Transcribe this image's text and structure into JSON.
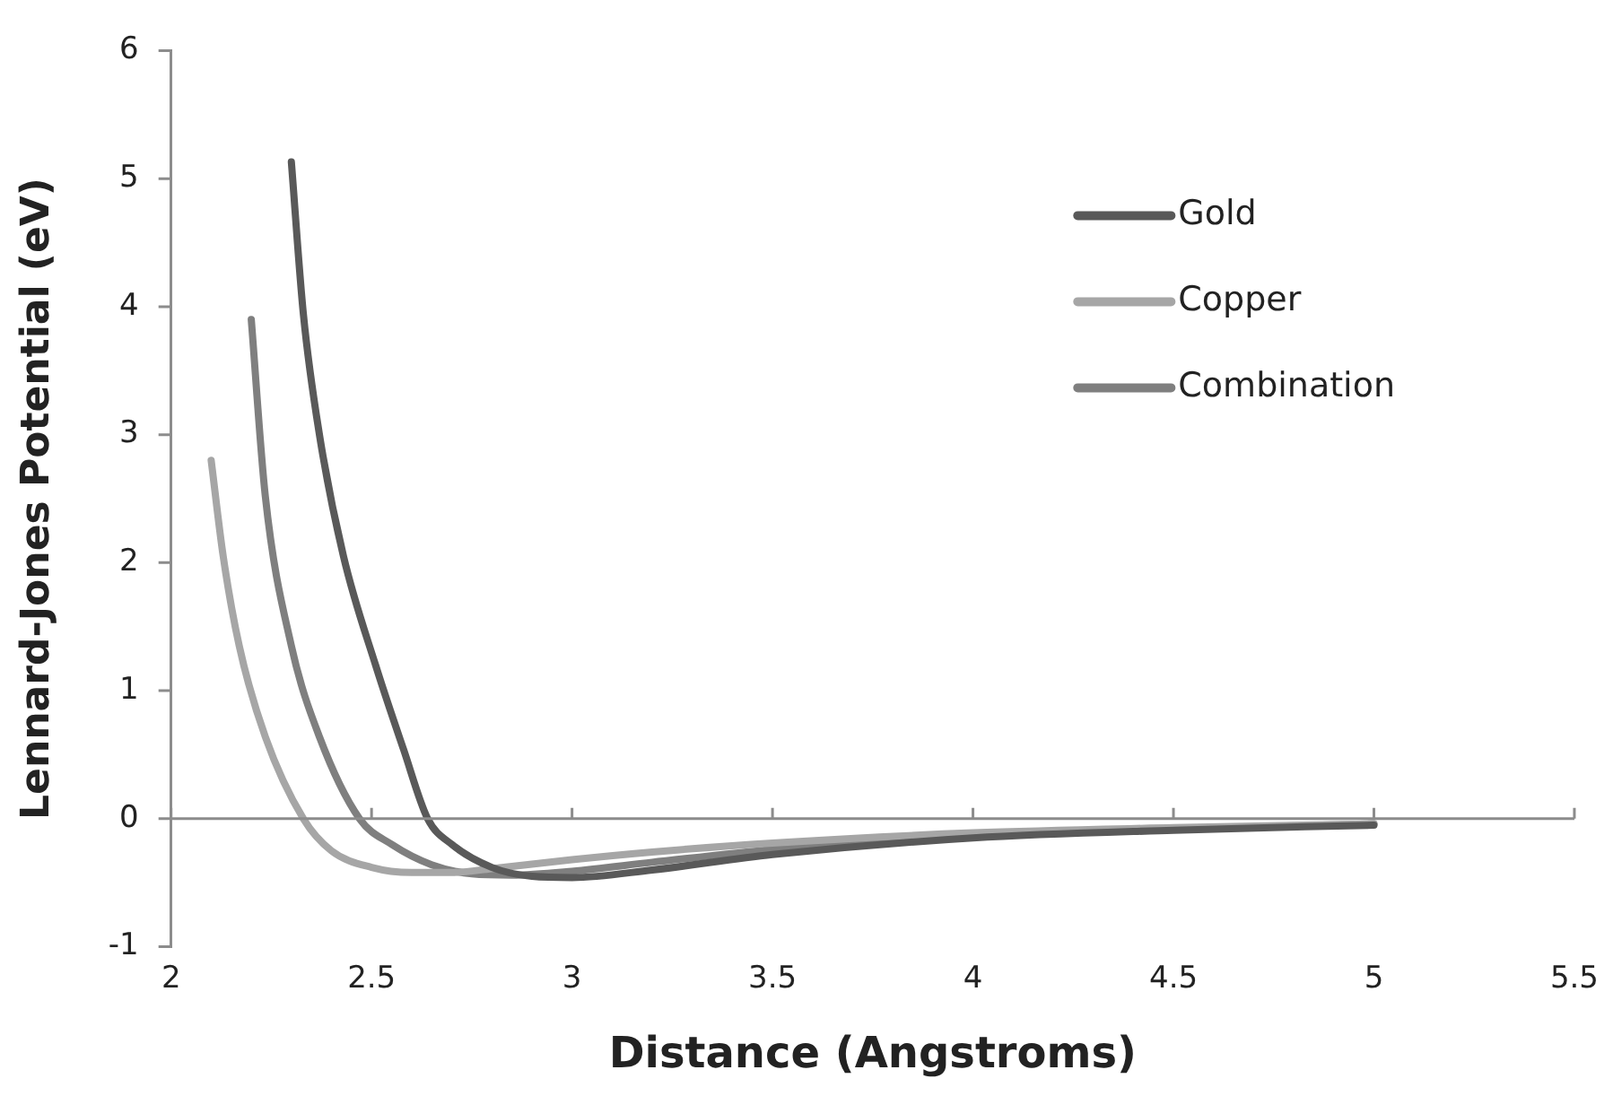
{
  "chart_data": {
    "type": "line",
    "xlabel": "Distance (Angstroms)",
    "ylabel": "Lennard-Jones Potential (eV)",
    "xlim": [
      2,
      5.5
    ],
    "xticks": [
      2,
      2.5,
      3,
      3.5,
      4,
      4.5,
      5,
      5.5
    ],
    "ylim": [
      -1,
      6
    ],
    "yticks": [
      -1,
      0,
      1,
      2,
      3,
      4,
      5,
      6
    ],
    "grid": false,
    "ref_lines": [
      {
        "axis": "y",
        "value": 0,
        "color": "#8c8c8c"
      }
    ],
    "legend": "top right",
    "marker": "none",
    "line_style": "solid",
    "series": [
      {
        "name": "Gold",
        "color": "#595959",
        "x": [
          2.3,
          2.33,
          2.37,
          2.43,
          2.51,
          2.58,
          2.64,
          2.7,
          2.8,
          2.9,
          3.0,
          3.2,
          3.5,
          4,
          4.5,
          5
        ],
        "values": [
          5.13,
          3.94,
          3.0,
          2.05,
          1.2,
          0.54,
          0,
          -0.2,
          -0.38,
          -0.45,
          -0.46,
          -0.4,
          -0.28,
          -0.15,
          -0.09,
          -0.05
        ]
      },
      {
        "name": "Copper",
        "color": "#a6a6a6",
        "x": [
          2.1,
          2.13,
          2.17,
          2.235,
          2.33,
          2.4,
          2.5,
          2.6,
          2.7,
          2.8,
          3.0,
          3.2,
          3.5,
          4,
          4.5,
          5
        ],
        "values": [
          2.8,
          2.05,
          1.35,
          0.64,
          0,
          -0.25,
          -0.38,
          -0.42,
          -0.42,
          -0.39,
          -0.32,
          -0.26,
          -0.19,
          -0.11,
          -0.07,
          -0.04
        ]
      },
      {
        "name": "Combination",
        "color": "#7f7f7f",
        "x": [
          2.2,
          2.235,
          2.3,
          2.37,
          2.47,
          2.55,
          2.65,
          2.75,
          2.85,
          3.0,
          3.2,
          3.5,
          4,
          4.5,
          5
        ],
        "values": [
          3.9,
          2.52,
          1.35,
          0.64,
          0,
          -0.2,
          -0.36,
          -0.43,
          -0.44,
          -0.41,
          -0.34,
          -0.24,
          -0.13,
          -0.08,
          -0.04
        ]
      }
    ]
  }
}
